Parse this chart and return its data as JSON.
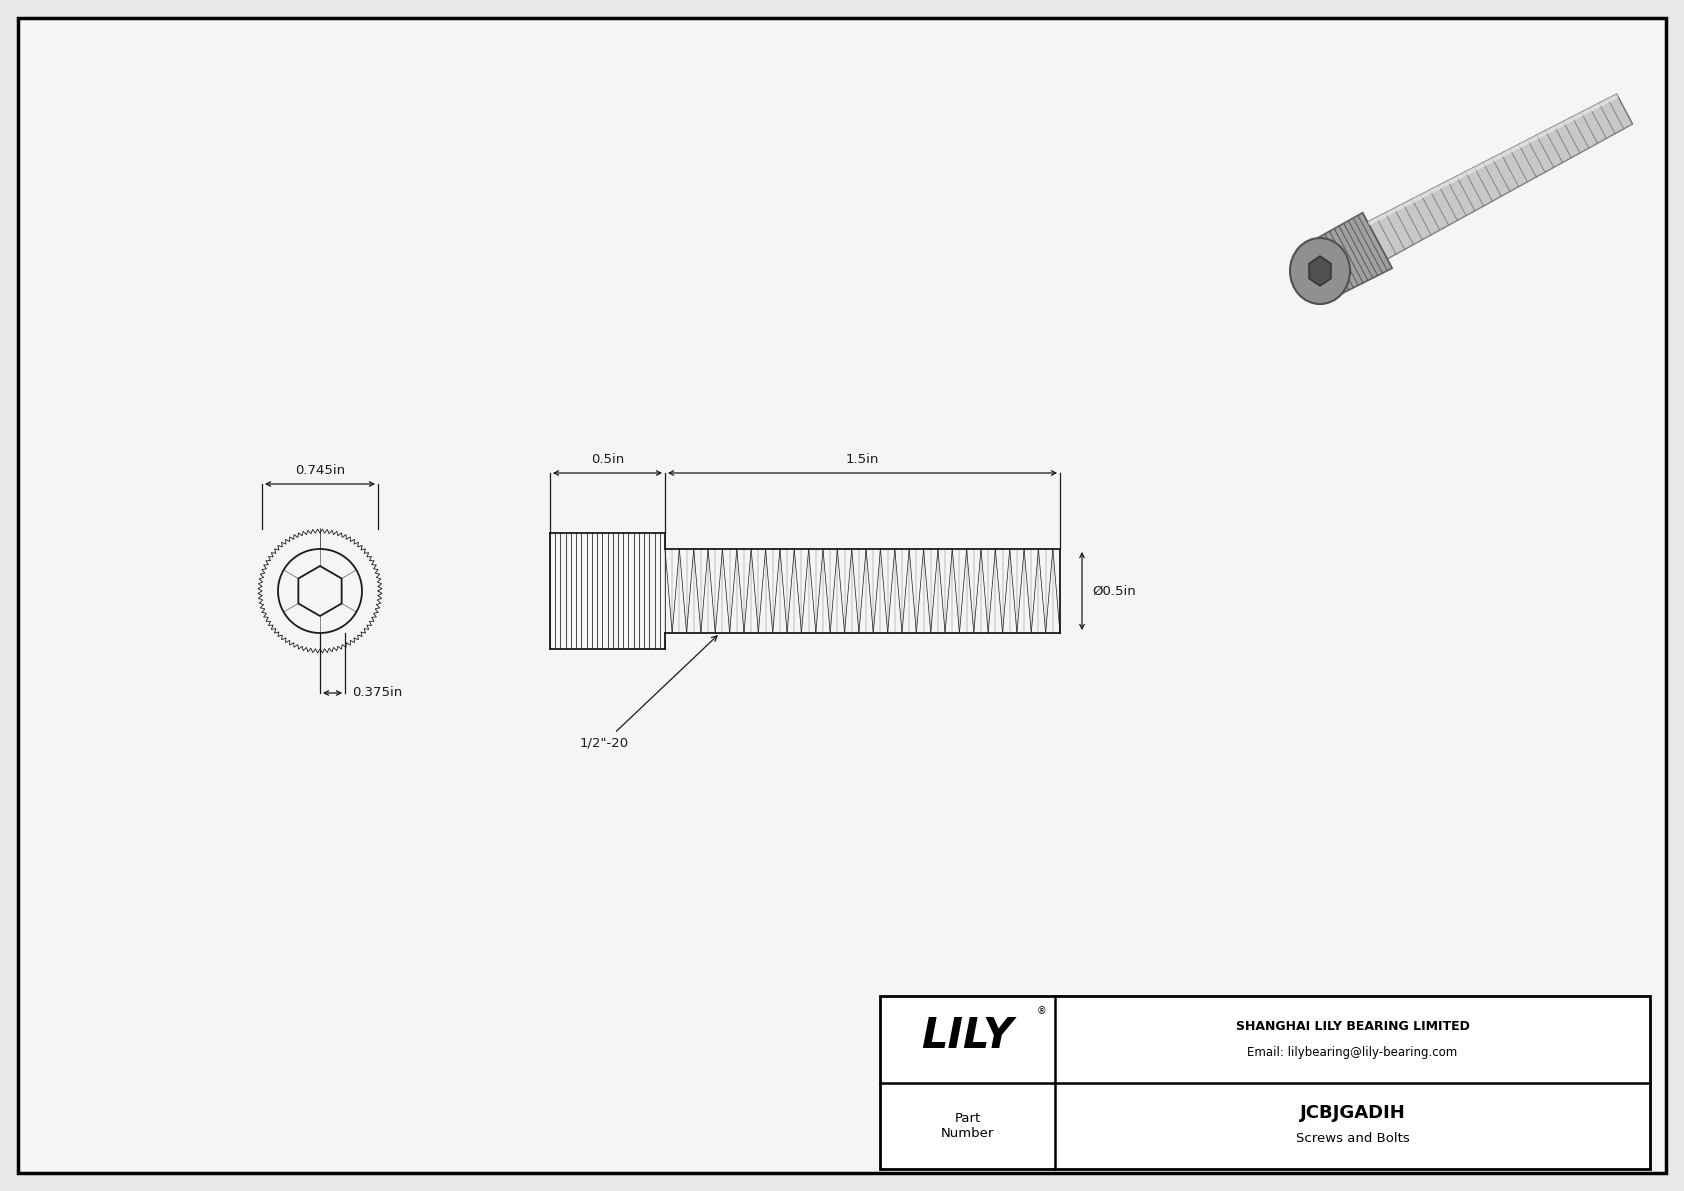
{
  "bg_color": "#e8e8e8",
  "drawing_bg": "#f5f5f5",
  "border_color": "#000000",
  "line_color": "#1a1a1a",
  "title_company": "SHANGHAI LILY BEARING LIMITED",
  "title_email": "Email: lilybearing@lily-bearing.com",
  "part_number": "JCBJGADIH",
  "part_category": "Screws and Bolts",
  "part_label": "Part\nNumber",
  "dim_head_diameter": "0.745in",
  "dim_socket_diameter": "0.375in",
  "dim_head_length": "0.5in",
  "dim_shaft_length": "1.5in",
  "dim_shaft_diameter": "Ø0.5in",
  "dim_thread": "1/2\"-20",
  "lily_logo": "LILY"
}
